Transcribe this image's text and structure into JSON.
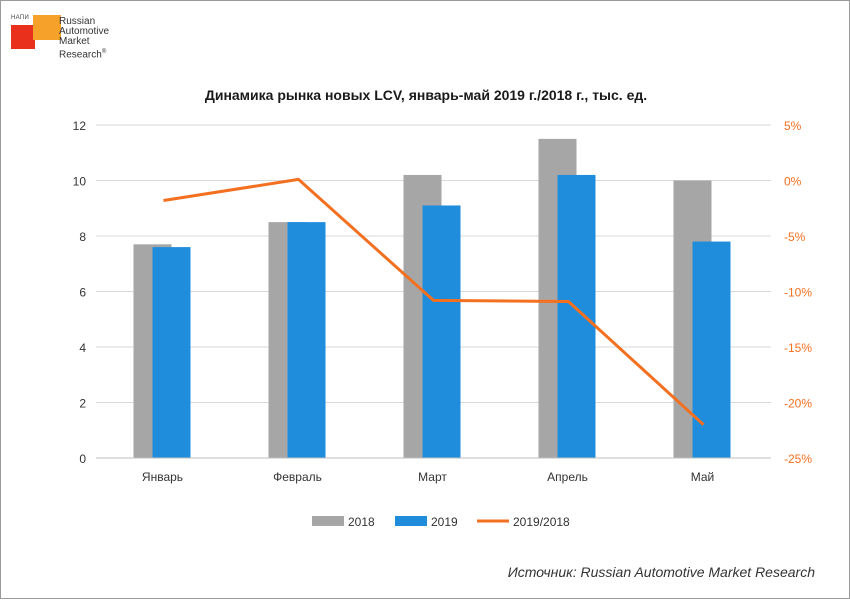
{
  "logo": {
    "small_text": "НАПИ",
    "lines": [
      "Russian",
      "Automotive",
      "Market",
      "Research"
    ],
    "mark": "®"
  },
  "source_text": "Источник: Russian Automotive Market Research",
  "colors": {
    "bar_2018": "#a6a6a6",
    "bar_2019": "#1f8ddb",
    "line": "#f37021",
    "logo_red": "#e8301c",
    "logo_orange": "#f6a22a",
    "grid": "#d9d9d9"
  },
  "chart_data": {
    "type": "bar",
    "title": "Динамика рынка новых LCV, январь-май 2019 г./2018 г., тыс. ед.",
    "categories": [
      "Январь",
      "Февраль",
      "Март",
      "Апрель",
      "Май"
    ],
    "series": [
      {
        "name": "2018",
        "type": "bar",
        "axis": "left",
        "values": [
          7.7,
          8.5,
          10.2,
          11.5,
          10.0
        ]
      },
      {
        "name": "2019",
        "type": "bar",
        "axis": "left",
        "values": [
          7.6,
          8.5,
          9.1,
          10.2,
          7.8
        ]
      },
      {
        "name": "2019/2018",
        "type": "line",
        "axis": "right",
        "values": [
          -1.8,
          0.1,
          -10.8,
          -10.9,
          -22.0
        ]
      }
    ],
    "ylim_left": [
      0,
      12
    ],
    "yticks_left": [
      "0",
      "2",
      "4",
      "6",
      "8",
      "10",
      "12"
    ],
    "ylim_right": [
      -25,
      5
    ],
    "yticks_right": [
      "-25%",
      "-20%",
      "-15%",
      "-10%",
      "-5%",
      "0%",
      "5%"
    ],
    "grid": true,
    "legend_position": "bottom"
  }
}
